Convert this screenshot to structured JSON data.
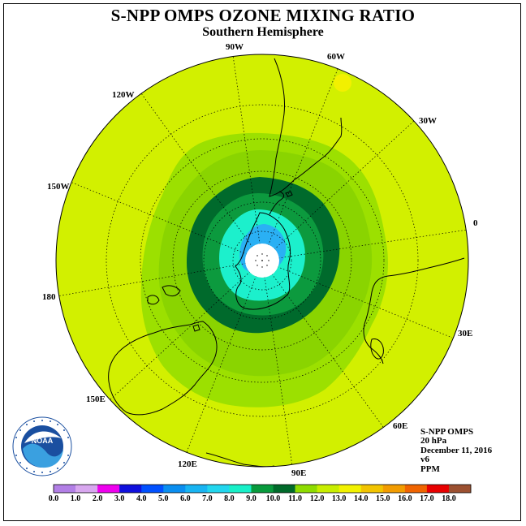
{
  "title": "S-NPP OMPS OZONE MIXING RATIO",
  "subtitle": "Southern Hemisphere",
  "longitude_labels": {
    "w90": "90W",
    "w60": "60W",
    "w120": "120W",
    "w30": "30W",
    "w150": "150W",
    "e0": "0",
    "d180": "180",
    "e30": "30E",
    "e150": "150E",
    "e60": "60E",
    "e120": "120E",
    "e90": "90E"
  },
  "info": {
    "instrument": "S-NPP OMPS",
    "level": "20 hPa",
    "date": "December 11, 2016",
    "version": "v6",
    "units": "PPM"
  },
  "logo": {
    "text": "NOAA",
    "ring_text": "NATIONAL OCEANIC AND ATMOSPHERIC ADMINISTRATION · U.S. DEPARTMENT OF COMMERCE"
  },
  "colorbar": {
    "ticks": [
      "0.0",
      "1.0",
      "2.0",
      "3.0",
      "4.0",
      "5.0",
      "6.0",
      "7.0",
      "8.0",
      "9.0",
      "10.0",
      "11.0",
      "12.0",
      "13.0",
      "14.0",
      "15.0",
      "16.0",
      "17.0",
      "18.0"
    ],
    "colors": [
      "#b27fe6",
      "#d8a7ef",
      "#ee00ee",
      "#1010dd",
      "#0050ff",
      "#0a8ef0",
      "#18b4f2",
      "#22d6ee",
      "#18f0c8",
      "#089a3c",
      "#006a2a",
      "#8edc00",
      "#c8ee00",
      "#f2f200",
      "#f2c400",
      "#f29c00",
      "#f06400",
      "#e80000",
      "#9c5030"
    ]
  },
  "legend_colors": {
    "background": "#d2f000",
    "band_11": "#9ce000",
    "band_10": "#8ad400",
    "band_9": "#006a2c",
    "band_8": "#0c9a3e",
    "band_7": "#1cf0cc",
    "band_6": "#2ab0f4",
    "band_12_spot": "#f2f000"
  }
}
